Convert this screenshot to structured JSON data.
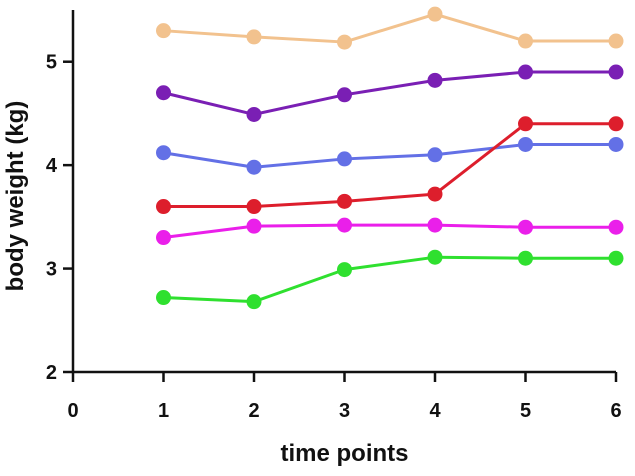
{
  "chart_data": {
    "type": "line",
    "title": "",
    "xlabel": "time points",
    "ylabel": "body weight (kg)",
    "xlim": [
      0,
      6
    ],
    "ylim": [
      2,
      5.5
    ],
    "x_ticks": [
      0,
      1,
      2,
      3,
      4,
      5,
      6
    ],
    "y_ticks": [
      2,
      3,
      4,
      5
    ],
    "grid": false,
    "legend": "none",
    "x": [
      1,
      2,
      3,
      4,
      5,
      6
    ],
    "series": [
      {
        "color": "#F2C28E",
        "values": [
          5.3,
          5.24,
          5.19,
          5.46,
          5.2,
          5.2
        ]
      },
      {
        "color": "#7A1FB4",
        "values": [
          4.7,
          4.49,
          4.68,
          4.82,
          4.9,
          4.9
        ]
      },
      {
        "color": "#6370E6",
        "values": [
          4.12,
          3.98,
          4.06,
          4.1,
          4.2,
          4.2
        ]
      },
      {
        "color": "#DD1E2C",
        "values": [
          3.6,
          3.6,
          3.65,
          3.72,
          4.4,
          4.4
        ]
      },
      {
        "color": "#EA1FEA",
        "values": [
          3.3,
          3.41,
          3.42,
          3.42,
          3.4,
          3.4
        ]
      },
      {
        "color": "#2FE02F",
        "values": [
          2.72,
          2.68,
          2.99,
          3.11,
          3.1,
          3.1
        ]
      }
    ]
  }
}
